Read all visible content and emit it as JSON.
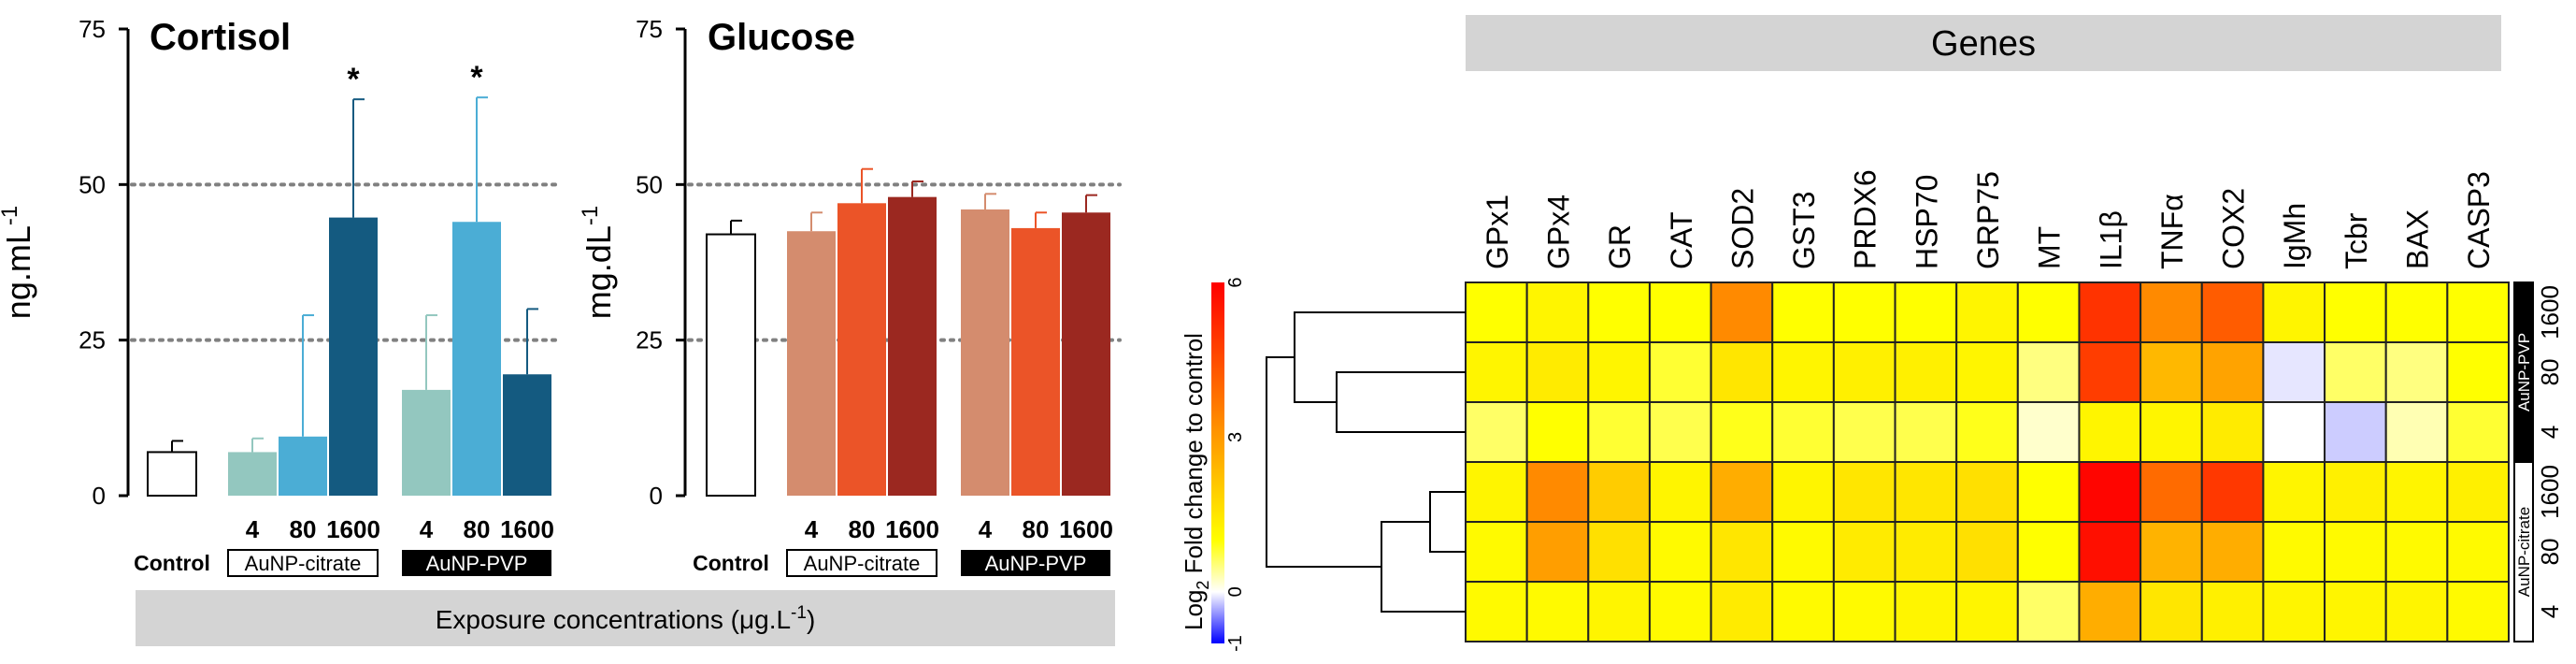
{
  "chart_data": [
    {
      "type": "bar",
      "title": "Cortisol",
      "ylabel": "ng.mL-1",
      "ylabel_base": "ng.mL",
      "ylabel_sup": "-1",
      "ylim": [
        0,
        75
      ],
      "yticks": [
        0,
        25,
        50,
        75
      ],
      "reference_lines": [
        25,
        50
      ],
      "groups": [
        {
          "name": "Control",
          "categories": [
            ""
          ],
          "values": [
            7.0
          ],
          "errors": [
            1.8
          ],
          "colors": [
            "#ffffff"
          ],
          "sig": [
            ""
          ]
        },
        {
          "name": "AuNP-citrate",
          "categories": [
            "4",
            "80",
            "1600"
          ],
          "values": [
            7.0,
            9.5,
            44.7
          ],
          "errors": [
            2.2,
            19.5,
            19.0
          ],
          "colors": [
            "#93c7bf",
            "#4badd5",
            "#145a80"
          ],
          "sig": [
            "",
            "",
            "*"
          ]
        },
        {
          "name": "AuNP-PVP",
          "categories": [
            "4",
            "80",
            "1600"
          ],
          "values": [
            17.0,
            44.0,
            19.5
          ],
          "errors": [
            12.0,
            20.0,
            10.5
          ],
          "colors": [
            "#93c7bf",
            "#4badd5",
            "#145a80"
          ],
          "sig": [
            "",
            "*",
            ""
          ]
        }
      ]
    },
    {
      "type": "bar",
      "title": "Glucose",
      "ylabel": "mg.dL-1",
      "ylabel_base": "mg.dL",
      "ylabel_sup": "-1",
      "ylim": [
        0,
        75
      ],
      "yticks": [
        0,
        25,
        50,
        75
      ],
      "reference_lines": [
        25,
        50
      ],
      "groups": [
        {
          "name": "Control",
          "categories": [
            ""
          ],
          "values": [
            42.0
          ],
          "errors": [
            2.2
          ],
          "colors": [
            "#ffffff"
          ],
          "sig": [
            ""
          ]
        },
        {
          "name": "AuNP-citrate",
          "categories": [
            "4",
            "80",
            "1600"
          ],
          "values": [
            42.5,
            47.0,
            48.0
          ],
          "errors": [
            3.0,
            5.5,
            2.5
          ],
          "colors": [
            "#d48c6e",
            "#eb5428",
            "#9b2820"
          ],
          "sig": [
            "",
            "",
            ""
          ]
        },
        {
          "name": "AuNP-PVP",
          "categories": [
            "4",
            "80",
            "1600"
          ],
          "values": [
            46.0,
            43.0,
            45.5
          ],
          "errors": [
            2.5,
            2.5,
            2.8
          ],
          "colors": [
            "#d48c6e",
            "#eb5428",
            "#9b2820"
          ],
          "sig": [
            "",
            "",
            ""
          ]
        }
      ]
    },
    {
      "type": "heatmap",
      "title": "Genes",
      "colorbar_label": "Log2 Fold change to control",
      "colorbar_label_prefix": "Log",
      "colorbar_label_sub": "2",
      "colorbar_label_rest": " Fold change to control",
      "colorbar_ticks": [
        "6",
        "3",
        "0",
        "-1"
      ],
      "vmin": -1,
      "vmax": 6,
      "columns": [
        "GPx1",
        "GPx4",
        "GR",
        "CAT",
        "SOD2",
        "GST3",
        "PRDX6",
        "HSP70",
        "GRP75",
        "MT",
        "IL1β",
        "TNFα",
        "COX2",
        "IgMh",
        "Tcbr",
        "BAX",
        "CASP3"
      ],
      "row_groups": [
        {
          "name": "AuNP-PVP",
          "rows": [
            "1600",
            "80",
            "4"
          ]
        },
        {
          "name": "AuNP-citrate",
          "rows": [
            "1600",
            "80",
            "4"
          ]
        }
      ],
      "values": [
        [
          1.0,
          1.2,
          1.0,
          1.0,
          3.3,
          1.0,
          1.0,
          1.0,
          1.2,
          1.0,
          5.0,
          3.3,
          4.2,
          1.2,
          1.0,
          1.0,
          1.0
        ],
        [
          1.2,
          1.4,
          1.2,
          0.8,
          1.5,
          1.2,
          1.3,
          1.3,
          1.2,
          0.5,
          4.8,
          2.4,
          2.8,
          -0.1,
          0.6,
          0.5,
          1.0
        ],
        [
          0.6,
          1.0,
          0.8,
          0.7,
          0.9,
          0.8,
          0.7,
          0.7,
          0.9,
          0.2,
          1.2,
          1.2,
          1.4,
          0.0,
          -0.2,
          0.3,
          0.8
        ],
        [
          1.2,
          3.3,
          2.0,
          1.2,
          2.6,
          1.2,
          1.5,
          1.5,
          1.6,
          1.0,
          5.9,
          3.9,
          4.9,
          1.2,
          1.3,
          1.2,
          1.3
        ],
        [
          1.1,
          2.9,
          1.6,
          1.1,
          1.5,
          1.1,
          1.4,
          1.4,
          1.6,
          1.0,
          5.7,
          2.5,
          2.6,
          1.1,
          1.1,
          1.1,
          1.1
        ],
        [
          1.1,
          1.1,
          1.2,
          1.1,
          1.4,
          1.1,
          1.1,
          1.2,
          1.2,
          0.6,
          2.6,
          1.5,
          1.3,
          1.2,
          1.2,
          1.2,
          1.1
        ]
      ]
    }
  ],
  "labels": {
    "control": "Control",
    "citrate": "AuNP-citrate",
    "pvp": "AuNP-PVP",
    "doses": [
      "4",
      "80",
      "1600"
    ],
    "exposure_base": "Exposure concentrations (μg.L",
    "exposure_sup": "-1",
    "exposure_end": ")"
  },
  "colors": {
    "grey_band": "#d4d4d4",
    "ref_line": "#808080",
    "heat_low": "#0000ff",
    "heat_zero": "#ffffff",
    "heat_mid": "#ffff00",
    "heat_high": "#ff0000"
  }
}
